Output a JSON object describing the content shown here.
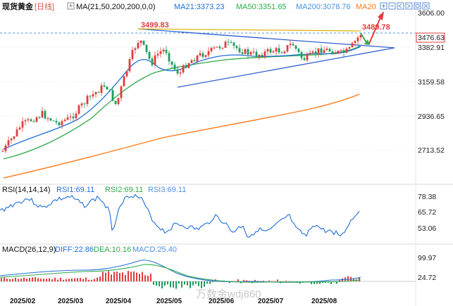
{
  "header": {
    "symbol": "现货黄金",
    "period": "[日线]",
    "ma_label": "MA(21,50,200,200,0,0)",
    "ma21": "MA21:3373.23",
    "ma50": "MA50:3351.65",
    "ma200": "MA200:3078.76",
    "ma20": "MA20"
  },
  "annotations": {
    "high_label": "3499.83",
    "current_high": "3489.78",
    "price_tag": "3476.63"
  },
  "price_axis": [
    "3606.00",
    "3382.91",
    "3159.58",
    "2936.65",
    "2713.52"
  ],
  "rsi": {
    "title": "RSI(14,14,14)",
    "rsi1": "RSI1:69.11",
    "rsi2": "RSI2:69.11",
    "rsi3": "RSI3:69.11",
    "axis": [
      "78.38",
      "65.72",
      "53.06"
    ]
  },
  "macd": {
    "title": "MACD(26,12,9)",
    "diff": "DIFF:22.86",
    "dea": "DEA:10.16",
    "value": "MACD:25.40",
    "axis": [
      "99.97",
      "24.72"
    ]
  },
  "x_axis": [
    "2025/02",
    "2025/03",
    "2025/04",
    "2025/05",
    "2025/06",
    "2025/07",
    "2025/08"
  ],
  "watermark": "万数金wdj860",
  "colors": {
    "up": "#e23b3b",
    "down": "#1a9e5c",
    "ma21": "#1f6fd6",
    "ma50": "#2eaa4a",
    "ma200": "#ff7a1a",
    "rsi": "#1f6fd6",
    "triangle": "#2f5fd0",
    "highline": "#d9b300",
    "label_red": "#e23b3b",
    "accent_blue": "#4a90e2"
  },
  "window_controls": [
    "zoom-in-icon",
    "zoom-out-icon",
    "pan-left-icon",
    "pan-right-icon",
    "reset-icon",
    "fullscreen-icon"
  ]
}
